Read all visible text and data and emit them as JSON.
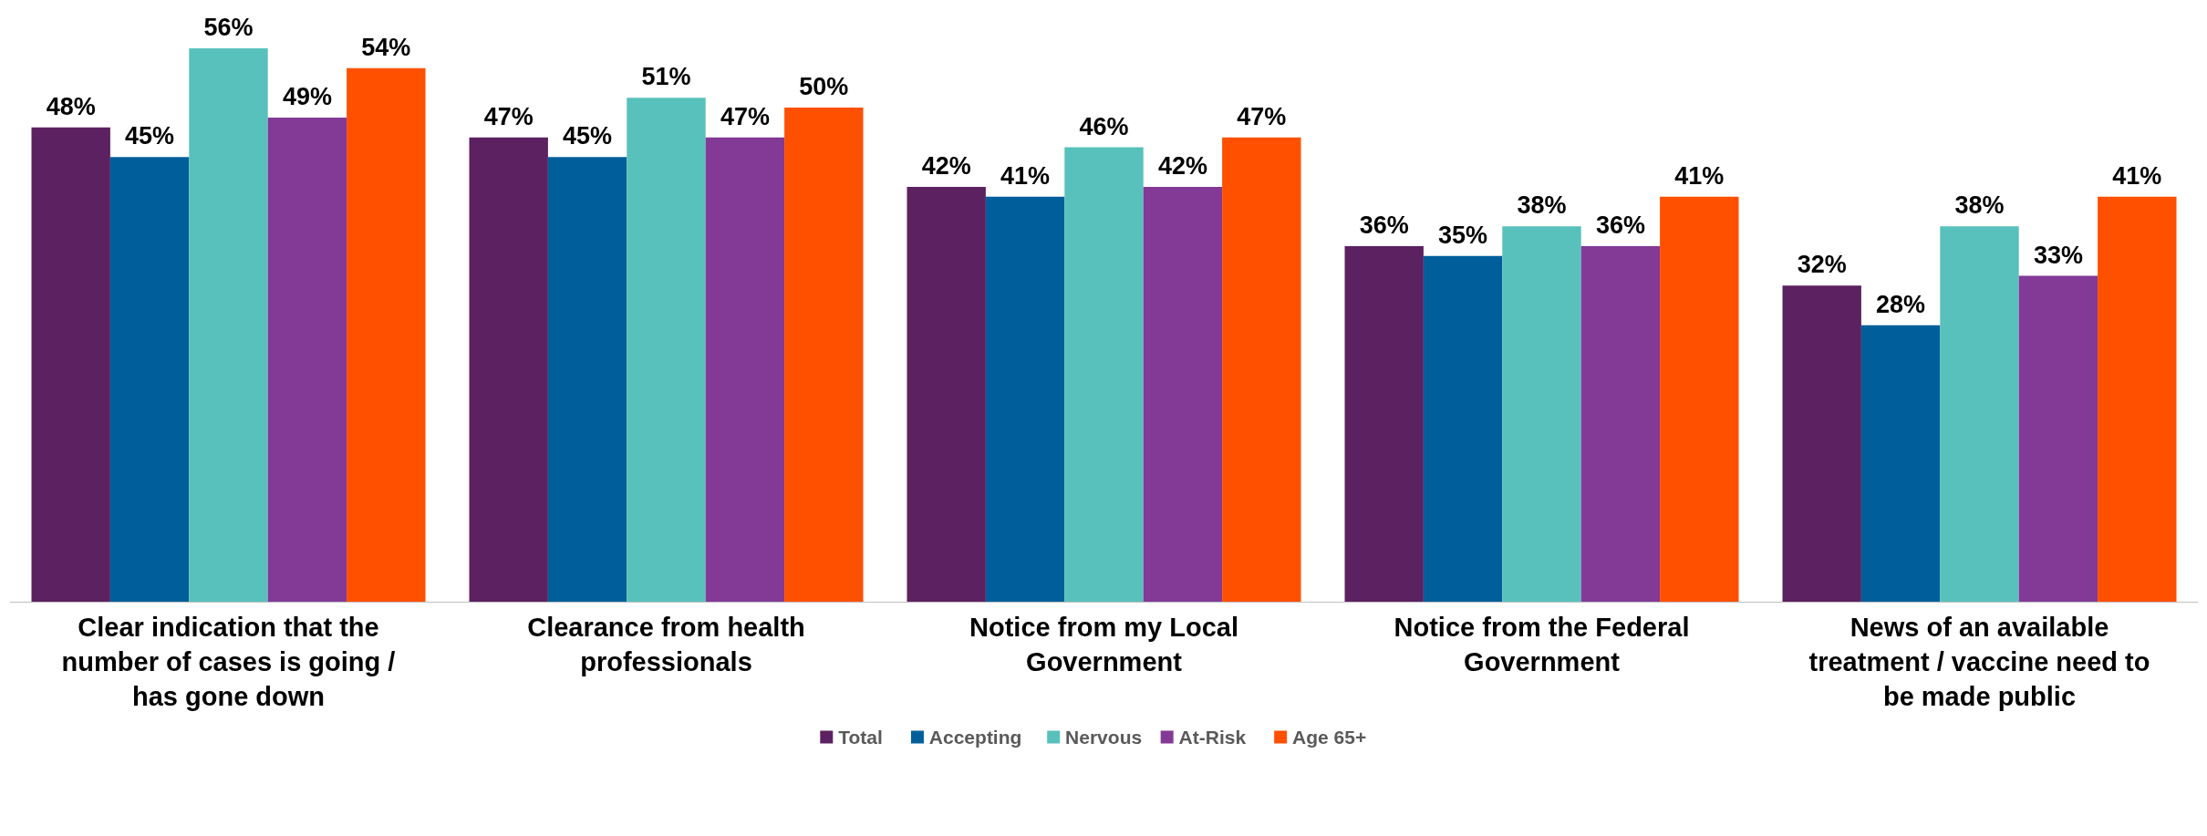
{
  "chart_data": {
    "type": "bar",
    "categories": [
      "Clear indication that the number of cases is going / has gone down",
      "Clearance from health professionals",
      "Notice from my Local Government",
      "Notice from the Federal Government",
      "News of an available treatment / vaccine need to be made public"
    ],
    "series": [
      {
        "name": "Total",
        "color": "#5c2161",
        "values": [
          48,
          47,
          42,
          36,
          32
        ],
        "value_labels": [
          "48%",
          "47%",
          "42%",
          "36%",
          "32%"
        ]
      },
      {
        "name": "Accepting",
        "color": "#005f9a",
        "values": [
          45,
          45,
          41,
          35,
          28
        ],
        "value_labels": [
          "45%",
          "45%",
          "41%",
          "35%",
          "28%"
        ]
      },
      {
        "name": "Nervous",
        "color": "#58c1bb",
        "values": [
          56,
          51,
          46,
          38,
          38
        ],
        "value_labels": [
          "56%",
          "51%",
          "46%",
          "38%",
          "38%"
        ]
      },
      {
        "name": "At-Risk",
        "color": "#833996",
        "values": [
          49,
          47,
          42,
          36,
          33
        ],
        "value_labels": [
          "49%",
          "47%",
          "42%",
          "36%",
          "33%"
        ]
      },
      {
        "name": "Age 65+",
        "color": "#ff5000",
        "values": [
          54,
          50,
          47,
          41,
          41
        ],
        "value_labels": [
          "54%",
          "50%",
          "47%",
          "41%",
          "41%"
        ]
      }
    ],
    "legend": "bottom",
    "tick_labels": "x"
  }
}
